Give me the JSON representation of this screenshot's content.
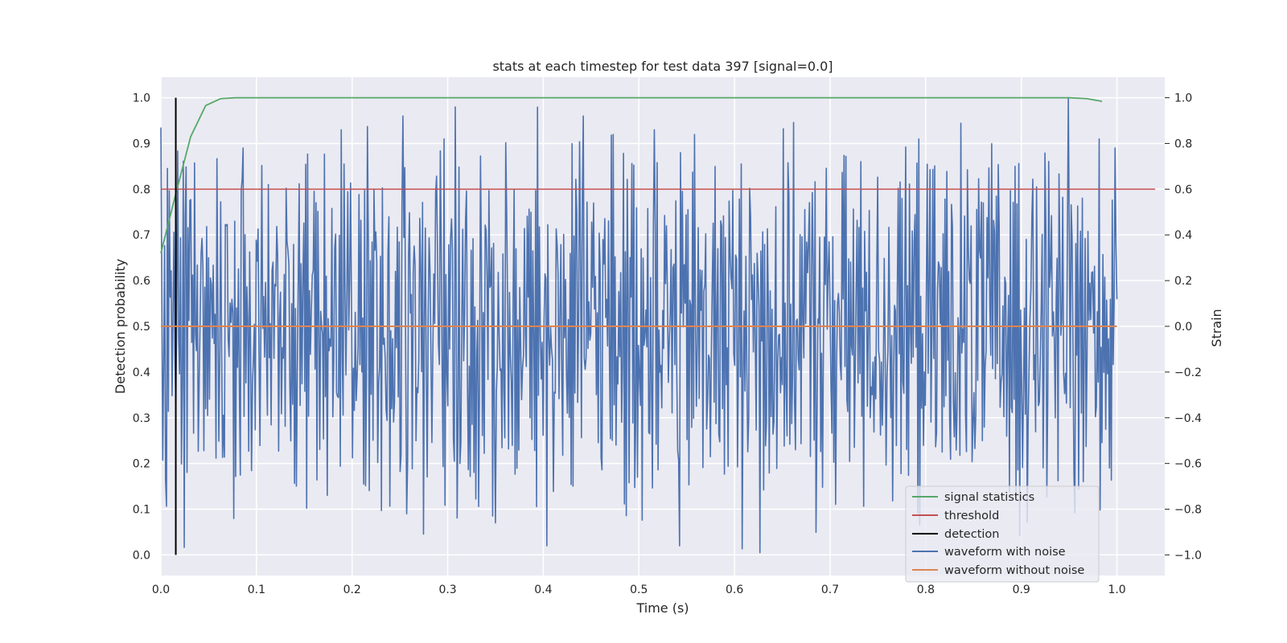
{
  "chart_data": {
    "type": "line",
    "title": "stats at each timestep for test data 397 [signal=0.0]",
    "xlabel": "Time (s)",
    "ylabel": "Detection probability",
    "y2label": "Strain",
    "xlim": [
      0.0,
      1.05
    ],
    "ylim": [
      -0.045,
      1.045
    ],
    "y2lim": [
      -1.09,
      1.09
    ],
    "grid": true,
    "legend_placement": "lower right",
    "x_ticks": [
      "0.0",
      "0.1",
      "0.2",
      "0.3",
      "0.4",
      "0.5",
      "0.6",
      "0.7",
      "0.8",
      "0.9",
      "1.0"
    ],
    "y_ticks": [
      "0.0",
      "0.1",
      "0.2",
      "0.3",
      "0.4",
      "0.5",
      "0.6",
      "0.7",
      "0.8",
      "0.9",
      "1.0"
    ],
    "y2_ticks": [
      "−1.0",
      "−0.8",
      "−0.6",
      "−0.4",
      "−0.2",
      "0.0",
      "0.2",
      "0.4",
      "0.6",
      "0.8",
      "1.0"
    ],
    "series": [
      {
        "name": "signal statistics",
        "axis": "left",
        "color": "#55a868",
        "x": [
          0.0,
          0.0156,
          0.0312,
          0.0469,
          0.0625,
          0.0781,
          0.1,
          0.2,
          0.3,
          0.4,
          0.5,
          0.6,
          0.7,
          0.8,
          0.9,
          0.95,
          0.9688,
          0.9844
        ],
        "y": [
          0.66,
          0.79,
          0.915,
          0.983,
          0.998,
          1.0,
          1.0,
          1.0,
          1.0,
          1.0,
          1.0,
          1.0,
          1.0,
          1.0,
          1.0,
          1.0,
          0.998,
          0.992
        ]
      },
      {
        "name": "threshold",
        "axis": "left",
        "color": "#c44e52",
        "x": [
          0.0,
          1.04
        ],
        "y": [
          0.8,
          0.8
        ]
      },
      {
        "name": "detection",
        "axis": "left",
        "color": "#000000",
        "x": [
          0.0156,
          0.0156
        ],
        "y": [
          0.0,
          1.0
        ]
      },
      {
        "name": "waveform with noise",
        "axis": "right",
        "color": "#4c72b0",
        "x_start": 0.0,
        "x_end": 1.0,
        "points": 1024,
        "y_range_approx": [
          -1.0,
          1.0
        ],
        "peaks": [
          {
            "x": 0.0,
            "y": 0.87
          },
          {
            "x": 0.005,
            "y": -0.67
          },
          {
            "x": 0.086,
            "y": 0.78
          },
          {
            "x": 0.189,
            "y": 0.86
          },
          {
            "x": 0.253,
            "y": 0.92
          },
          {
            "x": 0.257,
            "y": -0.82
          },
          {
            "x": 0.35,
            "y": -0.86
          },
          {
            "x": 0.404,
            "y": -0.96
          },
          {
            "x": 0.442,
            "y": 0.92
          },
          {
            "x": 0.516,
            "y": 0.86
          },
          {
            "x": 0.543,
            "y": -0.96
          },
          {
            "x": 0.627,
            "y": -0.99
          },
          {
            "x": 0.949,
            "y": 1.0
          },
          {
            "x": 0.955,
            "y": -0.65
          },
          {
            "x": 0.998,
            "y": 0.78
          }
        ]
      },
      {
        "name": "waveform without noise",
        "axis": "right",
        "color": "#dd8452",
        "x": [
          0.0,
          1.0
        ],
        "y": [
          0.0,
          0.0
        ]
      }
    ]
  }
}
